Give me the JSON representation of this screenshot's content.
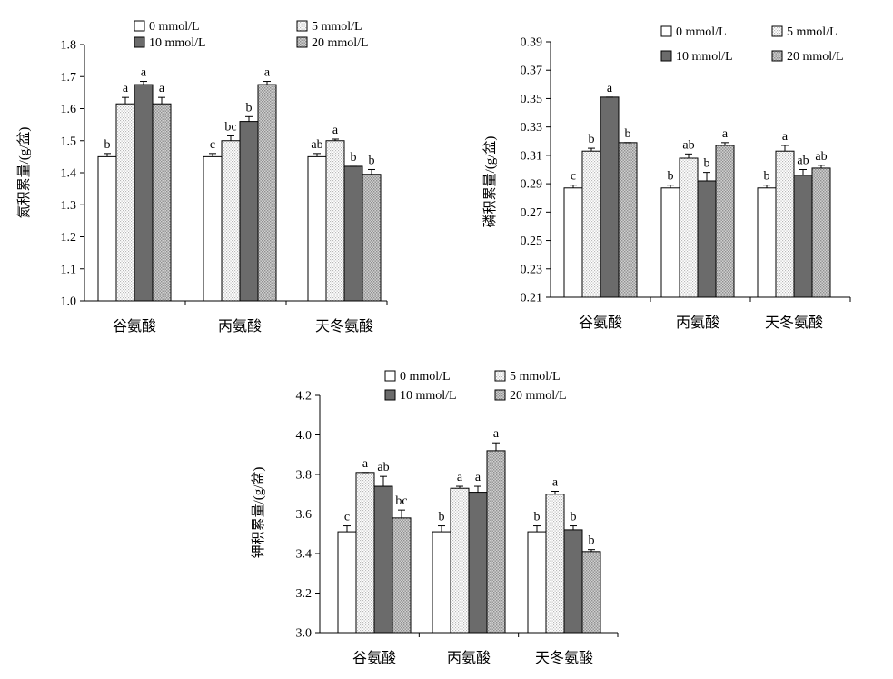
{
  "patterns": {
    "0 mmol/L": "white",
    "5 mmol/L": "light-dotted",
    "10 mmol/L": "dark-gray",
    "20 mmol/L": "medium-dotted"
  },
  "colors": {
    "dark": "#6b6b6b",
    "light_dot": "#b9b9b9",
    "medium_dot": "#8e8e8e"
  },
  "chart_data": [
    {
      "type": "bar",
      "ylabel": "氮积累量/(g/盆)",
      "categories": [
        "谷氨酸",
        "丙氨酸",
        "天冬氨酸"
      ],
      "ylim": [
        1.0,
        1.8
      ],
      "yticks": [
        "1.0",
        "1.1",
        "1.2",
        "1.3",
        "1.4",
        "1.5",
        "1.6",
        "1.7",
        "1.8"
      ],
      "legend": [
        "0 mmol/L",
        "5 mmol/L",
        "10 mmol/L",
        "20 mmol/L"
      ],
      "series": [
        {
          "name": "0 mmol/L",
          "values": [
            1.45,
            1.45,
            1.45
          ],
          "errors": [
            0.01,
            0.01,
            0.01
          ],
          "letters": [
            "b",
            "c",
            "ab"
          ]
        },
        {
          "name": "5 mmol/L",
          "values": [
            1.615,
            1.5,
            1.5
          ],
          "errors": [
            0.02,
            0.015,
            0.005
          ],
          "letters": [
            "a",
            "bc",
            "a"
          ]
        },
        {
          "name": "10 mmol/L",
          "values": [
            1.675,
            1.56,
            1.42
          ],
          "errors": [
            0.01,
            0.015,
            0.0
          ],
          "letters": [
            "a",
            "b",
            "b"
          ]
        },
        {
          "name": "20 mmol/L",
          "values": [
            1.615,
            1.675,
            1.395
          ],
          "errors": [
            0.02,
            0.01,
            0.015
          ],
          "letters": [
            "a",
            "a",
            "b"
          ]
        }
      ]
    },
    {
      "type": "bar",
      "ylabel": "磷积累量/(g/盆)",
      "categories": [
        "谷氨酸",
        "丙氨酸",
        "天冬氨酸"
      ],
      "ylim": [
        0.21,
        0.39
      ],
      "yticks": [
        "0.21",
        "0.23",
        "0.25",
        "0.27",
        "0.29",
        "0.31",
        "0.33",
        "0.35",
        "0.37",
        "0.39"
      ],
      "legend": [
        "0 mmol/L",
        "5 mmol/L",
        "10 mmol/L",
        "20 mmol/L"
      ],
      "series": [
        {
          "name": "0 mmol/L",
          "values": [
            0.287,
            0.287,
            0.287
          ],
          "errors": [
            0.002,
            0.002,
            0.002
          ],
          "letters": [
            "c",
            "b",
            "b"
          ]
        },
        {
          "name": "5 mmol/L",
          "values": [
            0.313,
            0.308,
            0.313
          ],
          "errors": [
            0.002,
            0.003,
            0.004
          ],
          "letters": [
            "b",
            "ab",
            "a"
          ]
        },
        {
          "name": "10 mmol/L",
          "values": [
            0.351,
            0.292,
            0.296
          ],
          "errors": [
            0.0,
            0.006,
            0.004
          ],
          "letters": [
            "a",
            "b",
            "ab"
          ]
        },
        {
          "name": "20 mmol/L",
          "values": [
            0.319,
            0.317,
            0.301
          ],
          "errors": [
            0.0,
            0.002,
            0.002
          ],
          "letters": [
            "b",
            "a",
            "ab"
          ]
        }
      ]
    },
    {
      "type": "bar",
      "ylabel": "钾积累量/(g/盆)",
      "categories": [
        "谷氨酸",
        "丙氨酸",
        "天冬氨酸"
      ],
      "ylim": [
        3.0,
        4.2
      ],
      "yticks": [
        "3.0",
        "3.2",
        "3.4",
        "3.6",
        "3.8",
        "4.0",
        "4.2"
      ],
      "legend": [
        "0 mmol/L",
        "5 mmol/L",
        "10 mmol/L",
        "20 mmol/L"
      ],
      "series": [
        {
          "name": "0 mmol/L",
          "values": [
            3.51,
            3.51,
            3.51
          ],
          "errors": [
            0.03,
            0.03,
            0.03
          ],
          "letters": [
            "c",
            "b",
            "b"
          ]
        },
        {
          "name": "5 mmol/L",
          "values": [
            3.81,
            3.73,
            3.7
          ],
          "errors": [
            0.0,
            0.01,
            0.015
          ],
          "letters": [
            "a",
            "a",
            "a"
          ]
        },
        {
          "name": "10 mmol/L",
          "values": [
            3.74,
            3.71,
            3.52
          ],
          "errors": [
            0.05,
            0.03,
            0.02
          ],
          "letters": [
            "ab",
            "a",
            "b"
          ]
        },
        {
          "name": "20 mmol/L",
          "values": [
            3.58,
            3.92,
            3.41
          ],
          "errors": [
            0.04,
            0.04,
            0.01
          ],
          "letters": [
            "bc",
            "a",
            "b"
          ]
        }
      ]
    }
  ]
}
